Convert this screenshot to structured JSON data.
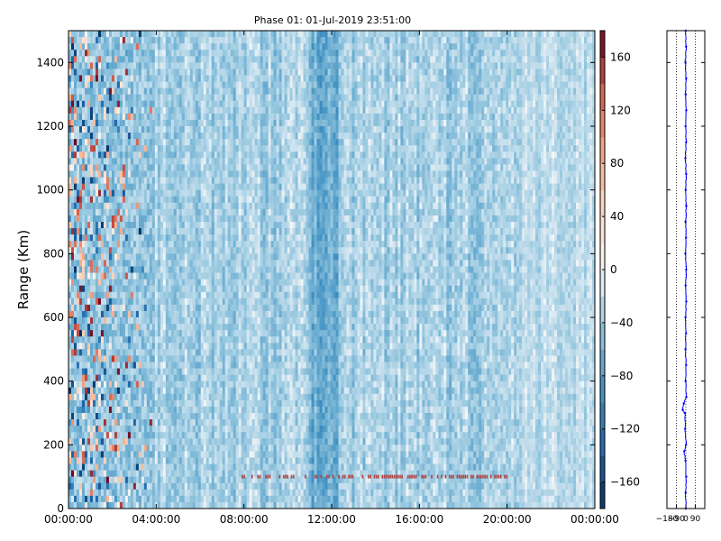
{
  "chart_data": [
    {
      "type": "heatmap",
      "title": "Phase 01: 01-Jul-2019 23:51:00",
      "xlabel": "",
      "ylabel": "Range (Km)",
      "x_ticks": [
        "00:00:00",
        "04:00:00",
        "08:00:00",
        "12:00:00",
        "16:00:00",
        "20:00:00",
        "00:00:00"
      ],
      "x_range_hours": [
        0,
        24
      ],
      "y_ticks": [
        0,
        200,
        400,
        600,
        800,
        1000,
        1200,
        1400
      ],
      "ylim": [
        0,
        1500
      ],
      "colorscale": "RdBu_r",
      "color_range": [
        -180,
        180
      ],
      "colorbar_ticks": [
        -160,
        -120,
        -80,
        -40,
        0,
        40,
        80,
        120,
        160
      ],
      "noise_region_hours": [
        0,
        3.8
      ],
      "dominant_phase_deg": -60,
      "red_band_range_km": 100,
      "red_band_hours": [
        7.8,
        20.0
      ],
      "dark_column_hours": [
        11.0,
        12.3
      ]
    },
    {
      "type": "line",
      "title": "",
      "x_ticks": [
        -180,
        -90,
        0,
        90
      ],
      "x_tick_labels": [
        "−180",
        "−90",
        "0",
        "90"
      ],
      "xlim": [
        -180,
        180
      ],
      "ylim": [
        0,
        1500
      ],
      "y_ticks": [
        0,
        200,
        400,
        600,
        800,
        1000,
        1200,
        1400
      ],
      "series_color": "#0000ff",
      "profile": [
        {
          "y": 0,
          "x": 0
        },
        {
          "y": 50,
          "x": -2
        },
        {
          "y": 100,
          "x": 4
        },
        {
          "y": 150,
          "x": -3
        },
        {
          "y": 180,
          "x": -15
        },
        {
          "y": 200,
          "x": 2
        },
        {
          "y": 250,
          "x": -6
        },
        {
          "y": 300,
          "x": -10
        },
        {
          "y": 310,
          "x": -30
        },
        {
          "y": 330,
          "x": -20
        },
        {
          "y": 350,
          "x": 5
        },
        {
          "y": 400,
          "x": -2
        },
        {
          "y": 450,
          "x": 3
        },
        {
          "y": 500,
          "x": -4
        },
        {
          "y": 550,
          "x": 2
        },
        {
          "y": 600,
          "x": -3
        },
        {
          "y": 650,
          "x": 4
        },
        {
          "y": 700,
          "x": -2
        },
        {
          "y": 750,
          "x": 3
        },
        {
          "y": 800,
          "x": -5
        },
        {
          "y": 850,
          "x": 2
        },
        {
          "y": 900,
          "x": -3
        },
        {
          "y": 950,
          "x": 4
        },
        {
          "y": 1000,
          "x": -2
        },
        {
          "y": 1050,
          "x": 3
        },
        {
          "y": 1100,
          "x": -4
        },
        {
          "y": 1150,
          "x": 2
        },
        {
          "y": 1200,
          "x": -3
        },
        {
          "y": 1250,
          "x": 4
        },
        {
          "y": 1300,
          "x": -2
        },
        {
          "y": 1350,
          "x": 3
        },
        {
          "y": 1400,
          "x": -4
        },
        {
          "y": 1450,
          "x": 2
        },
        {
          "y": 1500,
          "x": -1
        }
      ]
    }
  ]
}
